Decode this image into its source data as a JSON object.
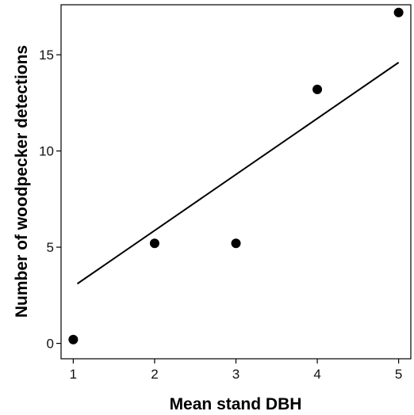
{
  "chart_data": {
    "type": "scatter",
    "title": "",
    "xlabel": "Mean stand DBH",
    "ylabel": "Number of woodpecker detections",
    "xlim": [
      0.85,
      5.15
    ],
    "ylim": [
      -0.8,
      17.6
    ],
    "x_ticks": [
      1,
      2,
      3,
      4,
      5
    ],
    "x_tick_labels": [
      "1",
      "2",
      "3",
      "4",
      "5"
    ],
    "y_ticks": [
      0,
      5,
      10,
      15
    ],
    "y_tick_labels": [
      "0",
      "5",
      "10",
      "15"
    ],
    "grid": false,
    "legend": "none",
    "points": [
      {
        "x": 1,
        "y": 0.2
      },
      {
        "x": 2,
        "y": 5.2
      },
      {
        "x": 3,
        "y": 5.2
      },
      {
        "x": 4,
        "y": 13.2
      },
      {
        "x": 5,
        "y": 17.2
      }
    ],
    "fit_line": {
      "x": [
        1.05,
        5.0
      ],
      "y": [
        3.1,
        14.6
      ]
    },
    "colors": {
      "points": "#000000",
      "line": "#000000",
      "axes": "#000000"
    }
  }
}
